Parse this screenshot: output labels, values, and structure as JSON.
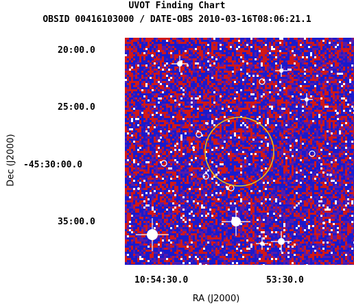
{
  "title": "UVOT Finding Chart",
  "subtitle": "OBSID 00416103000 / DATE-OBS 2010-03-16T08:06:21.1",
  "colors": {
    "background": "#ffffff",
    "image_base": "#5a1aa8",
    "noise_blue": "#1a1acc",
    "noise_red": "#d01818",
    "noise_white": "#ffffff",
    "source_ring": "#ffffff",
    "region": "#e0c020"
  },
  "chart_data": {
    "type": "image",
    "xlabel": "RA (J2000)",
    "ylabel": "Dec (J2000)",
    "x_ticks": [
      "10:54:30.0",
      "53:30.0"
    ],
    "y_ticks": [
      "20:00.0",
      "25:00.0",
      "-45:30:00.0",
      "35:00.0"
    ],
    "region": {
      "shape": "circle",
      "color": "#e0c020"
    },
    "source_markers": 6
  }
}
